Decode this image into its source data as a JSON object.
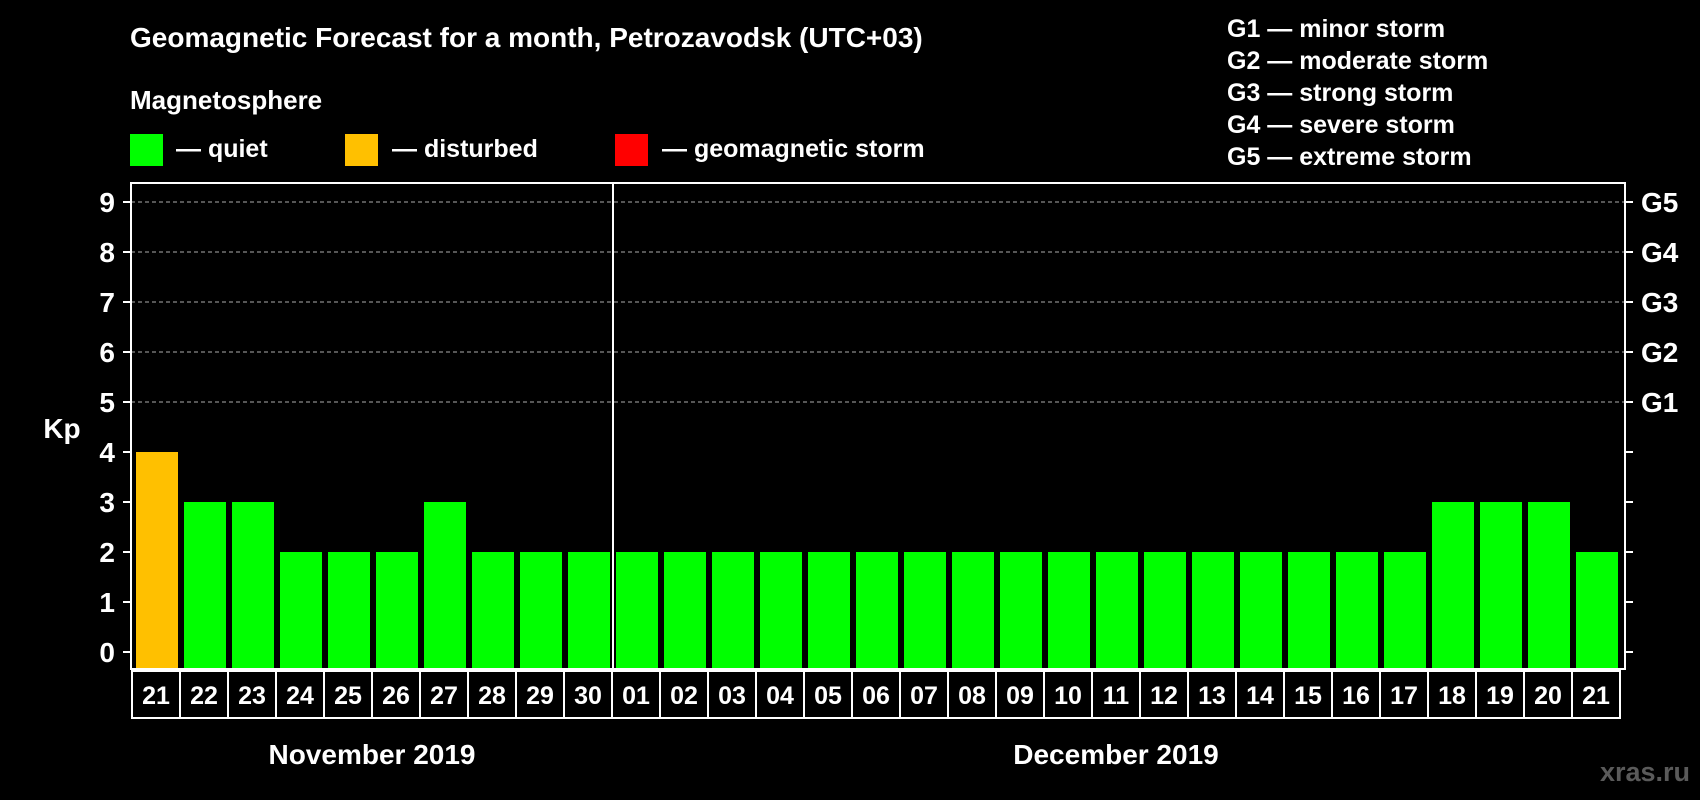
{
  "title": "Geomagnetic Forecast for a month, Petrozavodsk (UTC+03)",
  "subtitle": "Magnetosphere",
  "status_legend": [
    {
      "color": "#00ff00",
      "label": "— quiet"
    },
    {
      "color": "#ffc000",
      "label": "— disturbed"
    },
    {
      "color": "#ff0000",
      "label": "— geomagnetic storm"
    }
  ],
  "storm_legend": [
    "G1 — minor storm",
    "G2 — moderate storm",
    "G3 — strong storm",
    "G4 — severe storm",
    "G5 — extreme storm"
  ],
  "watermark": "xras.ru",
  "chart_data": {
    "type": "bar",
    "ylabel": "Kp",
    "ylim": [
      0,
      9
    ],
    "yticks": [
      0,
      1,
      2,
      3,
      4,
      5,
      6,
      7,
      8,
      9
    ],
    "right_ticks": [
      {
        "kp": 5,
        "label": "G1"
      },
      {
        "kp": 6,
        "label": "G2"
      },
      {
        "kp": 7,
        "label": "G3"
      },
      {
        "kp": 8,
        "label": "G4"
      },
      {
        "kp": 9,
        "label": "G5"
      }
    ],
    "grid": "dashed horizontal at Kp 5-9",
    "categories": [
      "21",
      "22",
      "23",
      "24",
      "25",
      "26",
      "27",
      "28",
      "29",
      "30",
      "01",
      "02",
      "03",
      "04",
      "05",
      "06",
      "07",
      "08",
      "09",
      "10",
      "11",
      "12",
      "13",
      "14",
      "15",
      "16",
      "17",
      "18",
      "19",
      "20",
      "21"
    ],
    "values": [
      4,
      3,
      3,
      2,
      2,
      2,
      3,
      2,
      2,
      2,
      2,
      2,
      2,
      2,
      2,
      2,
      2,
      2,
      2,
      2,
      2,
      2,
      2,
      2,
      2,
      2,
      2,
      3,
      3,
      3,
      2
    ],
    "status": [
      "disturbed",
      "quiet",
      "quiet",
      "quiet",
      "quiet",
      "quiet",
      "quiet",
      "quiet",
      "quiet",
      "quiet",
      "quiet",
      "quiet",
      "quiet",
      "quiet",
      "quiet",
      "quiet",
      "quiet",
      "quiet",
      "quiet",
      "quiet",
      "quiet",
      "quiet",
      "quiet",
      "quiet",
      "quiet",
      "quiet",
      "quiet",
      "quiet",
      "quiet",
      "quiet",
      "quiet"
    ],
    "status_colors": {
      "quiet": "#00ff00",
      "disturbed": "#ffc000",
      "storm": "#ff0000"
    },
    "months": [
      {
        "label": "November 2019",
        "start_index": 0,
        "count": 10
      },
      {
        "label": "December 2019",
        "start_index": 10,
        "count": 21
      }
    ]
  }
}
